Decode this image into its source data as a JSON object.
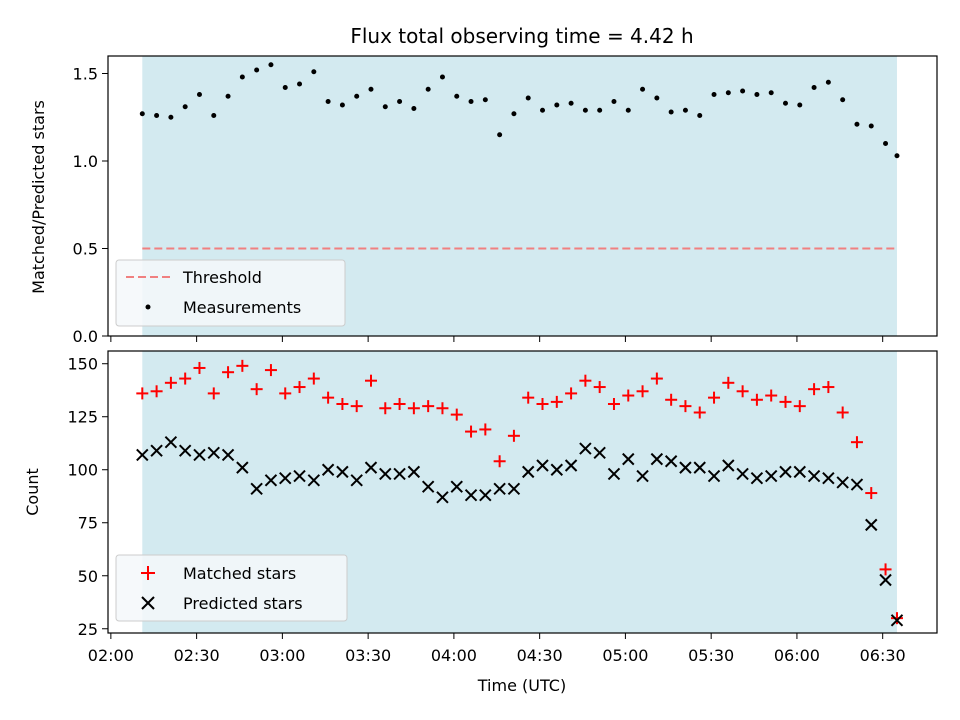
{
  "chart_data": [
    {
      "type": "scatter",
      "title": "Flux total observing time = 4.42 h",
      "ylabel": "Matched/Predicted stars",
      "ylim": [
        0,
        1.6
      ],
      "yticks": [
        0.0,
        0.5,
        1.0,
        1.5
      ],
      "ytick_labels": [
        "0.0",
        "0.5",
        "1.0",
        "1.5"
      ],
      "xlim": [
        "01:59",
        "06:49"
      ],
      "shaded_span": [
        "02:11",
        "06:35"
      ],
      "shade_color": "#d3eaf0",
      "legend_position": "lower-left",
      "threshold": {
        "name": "Threshold",
        "value": 0.5,
        "x_range": [
          "02:11",
          "06:35"
        ],
        "color": "#f08080"
      },
      "series": [
        {
          "name": "Measurements",
          "marker": "dot",
          "color": "#000000",
          "x": [
            "02:11",
            "02:16",
            "02:21",
            "02:26",
            "02:31",
            "02:36",
            "02:41",
            "02:46",
            "02:51",
            "02:56",
            "03:01",
            "03:06",
            "03:11",
            "03:16",
            "03:21",
            "03:26",
            "03:31",
            "03:36",
            "03:41",
            "03:46",
            "03:51",
            "03:56",
            "04:01",
            "04:06",
            "04:11",
            "04:16",
            "04:21",
            "04:26",
            "04:31",
            "04:36",
            "04:41",
            "04:46",
            "04:51",
            "04:56",
            "05:01",
            "05:06",
            "05:11",
            "05:16",
            "05:21",
            "05:26",
            "05:31",
            "05:36",
            "05:41",
            "05:46",
            "05:51",
            "05:56",
            "06:01",
            "06:06",
            "06:11",
            "06:16",
            "06:21",
            "06:26",
            "06:31",
            "06:35"
          ],
          "y": [
            1.27,
            1.26,
            1.25,
            1.31,
            1.38,
            1.26,
            1.37,
            1.48,
            1.52,
            1.55,
            1.42,
            1.44,
            1.51,
            1.34,
            1.32,
            1.37,
            1.41,
            1.31,
            1.34,
            1.3,
            1.41,
            1.48,
            1.37,
            1.34,
            1.35,
            1.15,
            1.27,
            1.36,
            1.29,
            1.32,
            1.33,
            1.29,
            1.29,
            1.34,
            1.29,
            1.41,
            1.36,
            1.28,
            1.29,
            1.26,
            1.38,
            1.39,
            1.4,
            1.38,
            1.39,
            1.33,
            1.32,
            1.42,
            1.45,
            1.35,
            1.21,
            1.2,
            1.1,
            1.03
          ]
        }
      ]
    },
    {
      "type": "scatter",
      "xlabel": "Time (UTC)",
      "ylabel": "Count",
      "ylim": [
        23,
        156
      ],
      "yticks": [
        25,
        50,
        75,
        100,
        125,
        150
      ],
      "ytick_labels": [
        "25",
        "50",
        "75",
        "100",
        "125",
        "150"
      ],
      "xlim": [
        "01:59",
        "06:49"
      ],
      "xticks": [
        "02:00",
        "02:30",
        "03:00",
        "03:30",
        "04:00",
        "04:30",
        "05:00",
        "05:30",
        "06:00",
        "06:30"
      ],
      "shaded_span": [
        "02:11",
        "06:35"
      ],
      "shade_color": "#d3eaf0",
      "legend_position": "lower-left",
      "series": [
        {
          "name": "Matched stars",
          "marker": "plus",
          "color": "#ff0000",
          "x": [
            "02:11",
            "02:16",
            "02:21",
            "02:26",
            "02:31",
            "02:36",
            "02:41",
            "02:46",
            "02:51",
            "02:56",
            "03:01",
            "03:06",
            "03:11",
            "03:16",
            "03:21",
            "03:26",
            "03:31",
            "03:36",
            "03:41",
            "03:46",
            "03:51",
            "03:56",
            "04:01",
            "04:06",
            "04:11",
            "04:16",
            "04:21",
            "04:26",
            "04:31",
            "04:36",
            "04:41",
            "04:46",
            "04:51",
            "04:56",
            "05:01",
            "05:06",
            "05:11",
            "05:16",
            "05:21",
            "05:26",
            "05:31",
            "05:36",
            "05:41",
            "05:46",
            "05:51",
            "05:56",
            "06:01",
            "06:06",
            "06:11",
            "06:16",
            "06:21",
            "06:26",
            "06:31",
            "06:35"
          ],
          "y": [
            136,
            137,
            141,
            143,
            148,
            136,
            146,
            149,
            138,
            147,
            136,
            139,
            143,
            134,
            131,
            130,
            142,
            129,
            131,
            129,
            130,
            129,
            126,
            118,
            119,
            104,
            116,
            134,
            131,
            132,
            136,
            142,
            139,
            131,
            135,
            137,
            143,
            133,
            130,
            127,
            134,
            141,
            137,
            133,
            135,
            132,
            130,
            138,
            139,
            127,
            113,
            89,
            53,
            30
          ]
        },
        {
          "name": "Predicted stars",
          "marker": "x",
          "color": "#000000",
          "x": [
            "02:11",
            "02:16",
            "02:21",
            "02:26",
            "02:31",
            "02:36",
            "02:41",
            "02:46",
            "02:51",
            "02:56",
            "03:01",
            "03:06",
            "03:11",
            "03:16",
            "03:21",
            "03:26",
            "03:31",
            "03:36",
            "03:41",
            "03:46",
            "03:51",
            "03:56",
            "04:01",
            "04:06",
            "04:11",
            "04:16",
            "04:21",
            "04:26",
            "04:31",
            "04:36",
            "04:41",
            "04:46",
            "04:51",
            "04:56",
            "05:01",
            "05:06",
            "05:11",
            "05:16",
            "05:21",
            "05:26",
            "05:31",
            "05:36",
            "05:41",
            "05:46",
            "05:51",
            "05:56",
            "06:01",
            "06:06",
            "06:11",
            "06:16",
            "06:21",
            "06:26",
            "06:31",
            "06:35"
          ],
          "y": [
            107,
            109,
            113,
            109,
            107,
            108,
            107,
            101,
            91,
            95,
            96,
            97,
            95,
            100,
            99,
            95,
            101,
            98,
            98,
            99,
            92,
            87,
            92,
            88,
            88,
            91,
            91,
            99,
            102,
            100,
            102,
            110,
            108,
            98,
            105,
            97,
            105,
            104,
            101,
            101,
            97,
            102,
            98,
            96,
            97,
            99,
            99,
            97,
            96,
            94,
            93,
            74,
            48,
            29
          ]
        }
      ]
    }
  ]
}
